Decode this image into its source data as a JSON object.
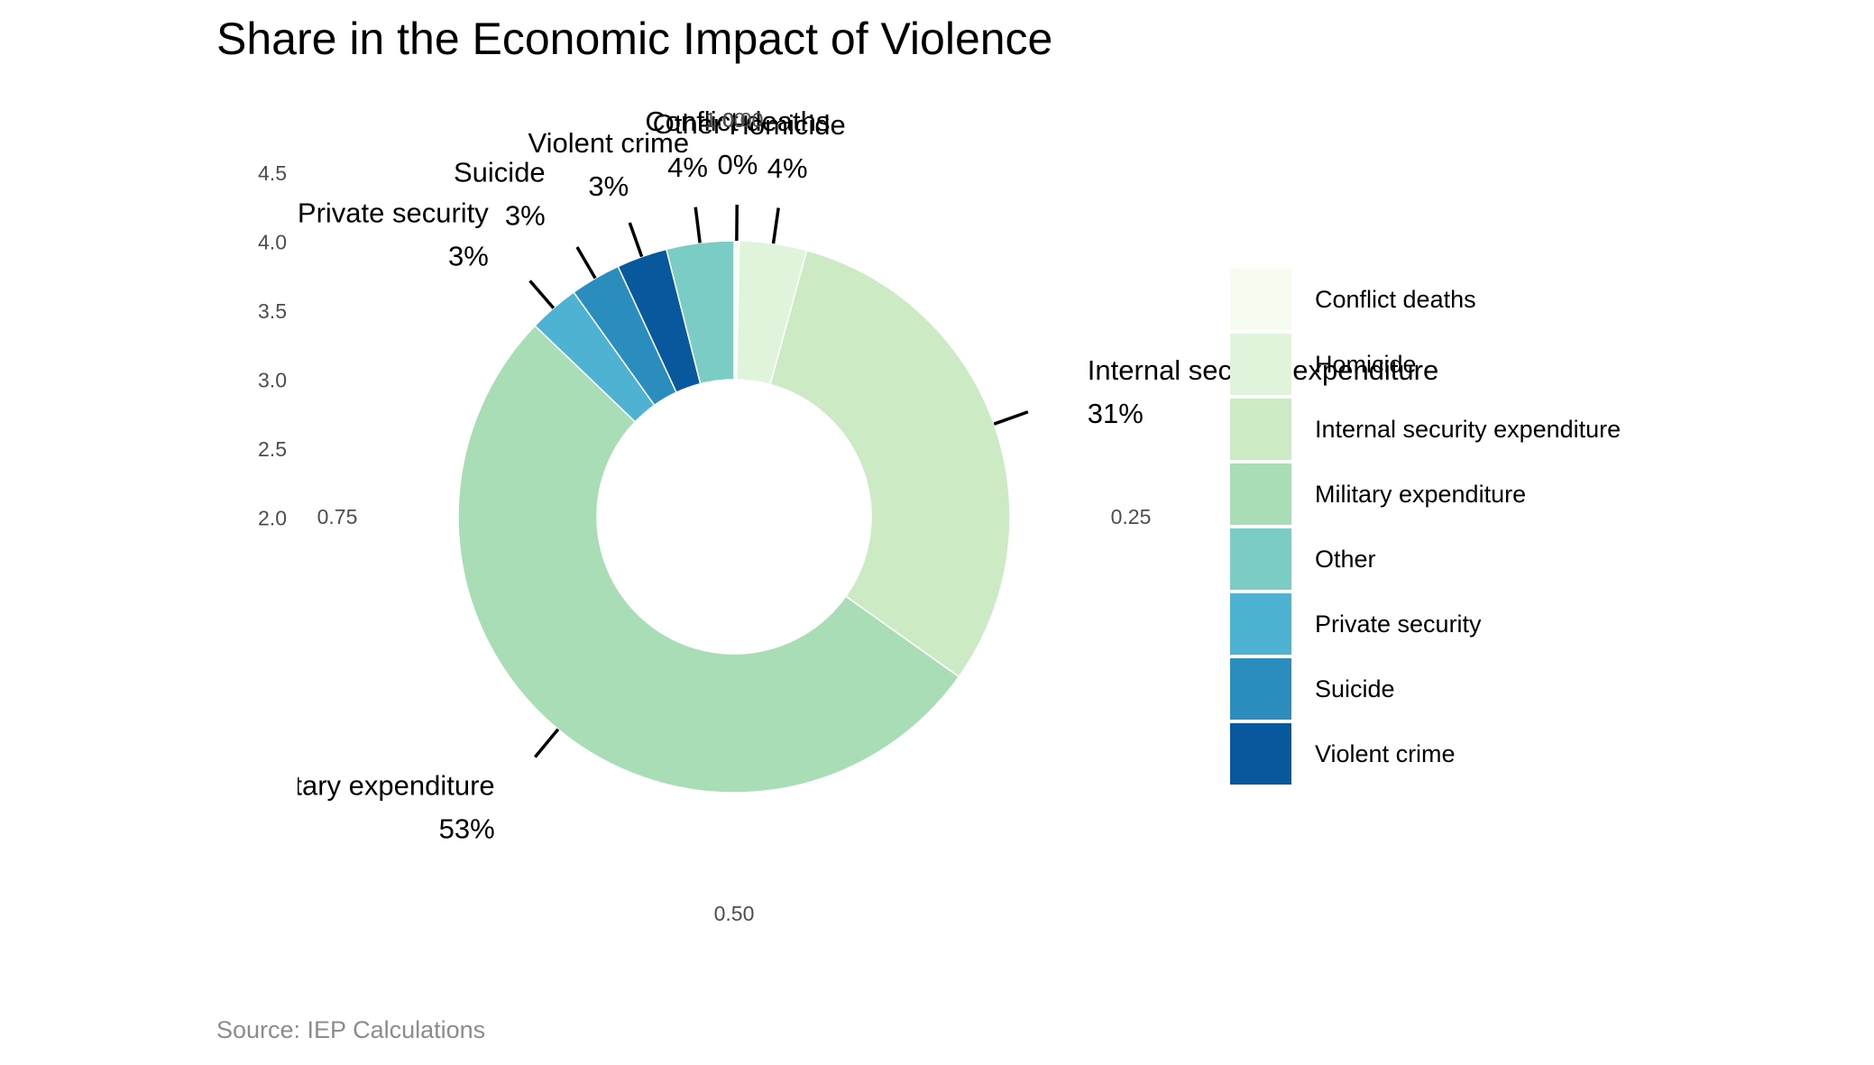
{
  "title": "Share in the Economic Impact of Violence",
  "source": "Source: IEP Calculations",
  "chart_data": {
    "type": "pie",
    "subtype": "donut",
    "title": "Share in the Economic Impact of Violence",
    "slices": [
      {
        "name": "Conflict deaths",
        "value": 0.3,
        "label": "0%",
        "color": "#F7FCF0"
      },
      {
        "name": "Homicide",
        "value": 4,
        "label": "4%",
        "color": "#E0F3DB"
      },
      {
        "name": "Internal security expenditure",
        "value": 31,
        "label": "31%",
        "color": "#CCEBC5"
      },
      {
        "name": "Military expenditure",
        "value": 53,
        "label": "53%",
        "color": "#A8DDB5"
      },
      {
        "name": "Private security",
        "value": 3,
        "label": "3%",
        "color": "#4EB3D3"
      },
      {
        "name": "Suicide",
        "value": 3,
        "label": "3%",
        "color": "#2B8CBE"
      },
      {
        "name": "Violent crime",
        "value": 3,
        "label": "3%",
        "color": "#08589E"
      },
      {
        "name": "Other",
        "value": 4,
        "label": "4%",
        "color": "#7BCCC4"
      }
    ],
    "angular_ticks": [
      "0.00",
      "0.25",
      "0.50",
      "0.75",
      "1.00"
    ],
    "radial_ticks": [
      "2.0",
      "2.5",
      "3.0",
      "3.5",
      "4.0",
      "4.5"
    ],
    "legend": {
      "position": "right",
      "items": [
        {
          "name": "Conflict deaths",
          "color": "#F7FCF0"
        },
        {
          "name": "Homicide",
          "color": "#E0F3DB"
        },
        {
          "name": "Internal security expenditure",
          "color": "#CCEBC5"
        },
        {
          "name": "Military expenditure",
          "color": "#A8DDB5"
        },
        {
          "name": "Other",
          "color": "#7BCCC4"
        },
        {
          "name": "Private security",
          "color": "#4EB3D3"
        },
        {
          "name": "Suicide",
          "color": "#2B8CBE"
        },
        {
          "name": "Violent crime",
          "color": "#08589E"
        }
      ]
    }
  }
}
